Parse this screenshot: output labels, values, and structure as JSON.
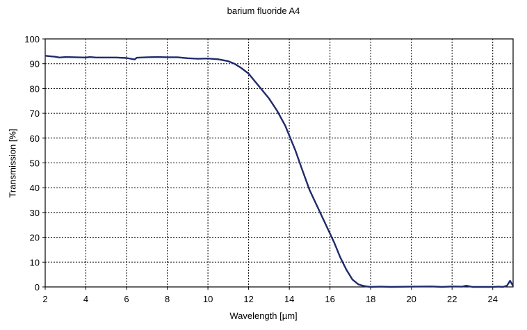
{
  "chart_data": {
    "type": "line",
    "title": "barium fluoride A4",
    "xlabel": "Wavelength [µm]",
    "ylabel": "Transmission [%]",
    "xlim": [
      2,
      25
    ],
    "ylim": [
      0,
      100
    ],
    "x_ticks": [
      2,
      4,
      6,
      8,
      10,
      12,
      14,
      16,
      18,
      20,
      22,
      24
    ],
    "y_ticks": [
      0,
      10,
      20,
      30,
      40,
      50,
      60,
      70,
      80,
      90,
      100
    ],
    "grid": true,
    "series": [
      {
        "color": "#1f2a6b",
        "x": [
          2.0,
          2.5,
          2.7,
          3.0,
          3.5,
          4.0,
          4.2,
          4.5,
          5.0,
          5.5,
          6.0,
          6.4,
          6.5,
          7.0,
          7.5,
          8.0,
          8.5,
          9.0,
          9.5,
          10.0,
          10.5,
          11.0,
          11.3,
          11.6,
          12.0,
          12.3,
          12.6,
          13.0,
          13.4,
          13.8,
          14.0,
          14.3,
          14.6,
          15.0,
          15.4,
          15.8,
          16.2,
          16.5,
          16.8,
          17.1,
          17.4,
          17.6,
          17.8,
          18.0,
          18.5,
          19.0,
          20.0,
          21.0,
          21.5,
          22.0,
          22.5,
          22.7,
          23.0,
          23.5,
          24.0,
          24.3,
          24.5,
          24.7,
          24.85,
          25.0
        ],
        "y": [
          93.2,
          92.8,
          92.5,
          92.7,
          92.6,
          92.5,
          92.7,
          92.5,
          92.5,
          92.5,
          92.3,
          91.7,
          92.4,
          92.6,
          92.7,
          92.6,
          92.6,
          92.2,
          92.0,
          92.1,
          91.8,
          91.0,
          90.0,
          88.5,
          86.0,
          83.0,
          80.0,
          76.0,
          71.0,
          65.0,
          61.0,
          55.0,
          48.0,
          39.0,
          32.0,
          25.0,
          18.0,
          12.0,
          7.0,
          3.0,
          1.0,
          0.5,
          0.2,
          0.0,
          0.1,
          0.0,
          0.1,
          0.2,
          0.0,
          0.2,
          0.1,
          0.5,
          0.0,
          0.0,
          0.0,
          0.1,
          0.0,
          0.5,
          2.5,
          0.4
        ]
      }
    ]
  }
}
